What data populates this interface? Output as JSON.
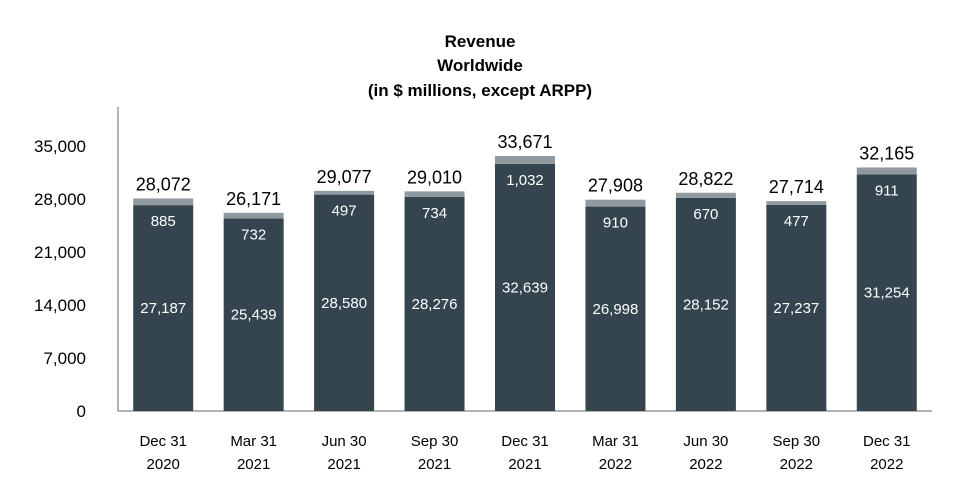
{
  "chart_data": {
    "type": "bar",
    "stacked": true,
    "title_lines": [
      "Revenue",
      "Worldwide",
      "(in $ millions, except ARPP)"
    ],
    "categories": [
      [
        "Dec 31",
        "2020"
      ],
      [
        "Mar 31",
        "2021"
      ],
      [
        "Jun 30",
        "2021"
      ],
      [
        "Sep 30",
        "2021"
      ],
      [
        "Dec 31",
        "2021"
      ],
      [
        "Mar 31",
        "2022"
      ],
      [
        "Jun 30",
        "2022"
      ],
      [
        "Sep 30",
        "2022"
      ],
      [
        "Dec 31",
        "2022"
      ]
    ],
    "series": [
      {
        "values": [
          27187,
          25439,
          28580,
          28276,
          32639,
          26998,
          28152,
          27237,
          31254
        ],
        "labels": [
          "27,187",
          "25,439",
          "28,580",
          "28,276",
          "32,639",
          "26,998",
          "28,152",
          "27,237",
          "31,254"
        ],
        "color": "#34454F"
      },
      {
        "values": [
          885,
          732,
          497,
          734,
          1032,
          910,
          670,
          477,
          911
        ],
        "labels": [
          "885",
          "732",
          "497",
          "734",
          "1,032",
          "910",
          "670",
          "477",
          "911"
        ],
        "color": "#8F999E"
      }
    ],
    "totals": [
      "28,072",
      "26,171",
      "29,077",
      "29,010",
      "33,671",
      "27,908",
      "28,822",
      "27,714",
      "32,165"
    ],
    "yticks": [
      0,
      7000,
      14000,
      21000,
      28000,
      35000
    ],
    "ytick_labels": [
      "0",
      "7,000",
      "14,000",
      "21,000",
      "28,000",
      "35,000"
    ],
    "ylim": [
      0,
      35000
    ],
    "grid": false,
    "legend": "none"
  }
}
